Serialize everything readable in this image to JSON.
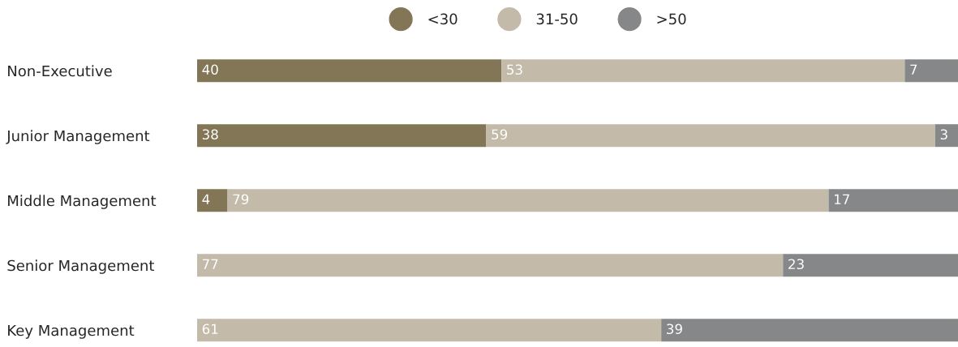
{
  "chart_data": {
    "type": "bar",
    "orientation": "horizontal",
    "stacked": true,
    "data_labels": true,
    "categories": [
      "Non-Executive",
      "Junior Management",
      "Middle Management",
      "Senior Management",
      "Key Management"
    ],
    "series": [
      {
        "name": "<30",
        "color": "#837656",
        "values": [
          40,
          38,
          4,
          null,
          null
        ]
      },
      {
        "name": "31-50",
        "color": "#c3baa9",
        "values": [
          53,
          59,
          79,
          77,
          61
        ]
      },
      {
        "name": ">50",
        "color": "#858789",
        "values": [
          7,
          3,
          17,
          23,
          39
        ]
      }
    ],
    "xlim": [
      0,
      100
    ],
    "tick_labels": "y",
    "grid": false,
    "legend": "top",
    "marker": "circle"
  }
}
